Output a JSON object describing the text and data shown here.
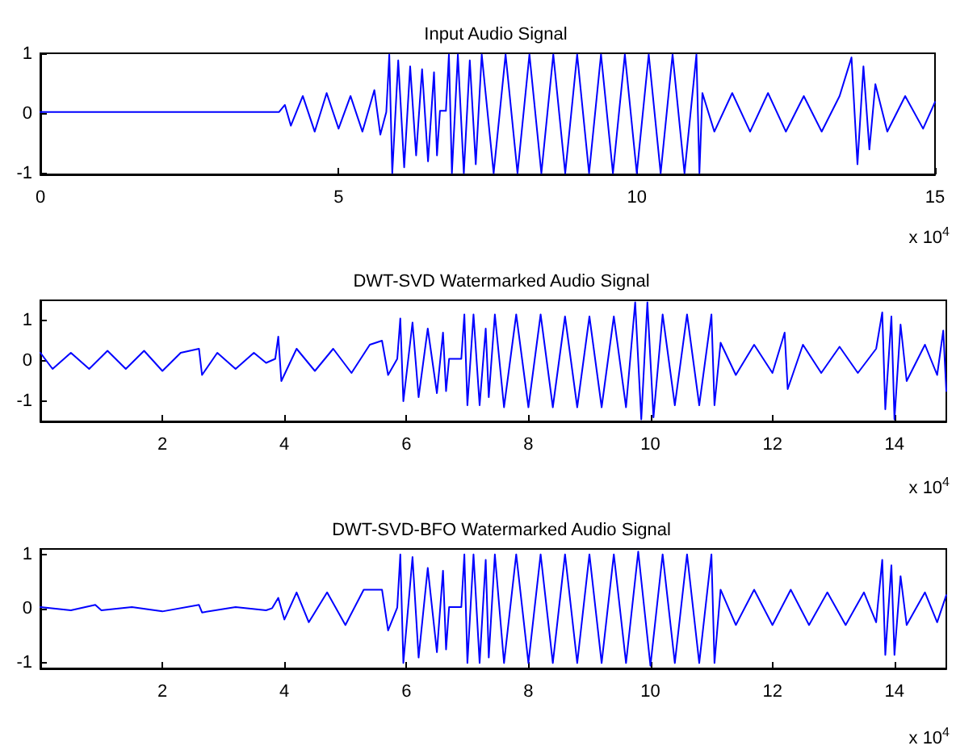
{
  "chart_data": [
    {
      "type": "line",
      "title": "Input Audio Signal",
      "annotations": [
        "x 10$^{4}$"
      ],
      "color": "#0000ff",
      "grid": false,
      "marker": "none",
      "line_style": "solid",
      "xlim": [
        0,
        15
      ],
      "xticks": [
        0,
        5,
        10,
        15
      ],
      "ylim": [
        -1.02,
        1.02
      ],
      "yticks": [
        -1,
        0,
        1
      ],
      "x": [
        0,
        1,
        2,
        3,
        4,
        4.1,
        4.2,
        4.4,
        4.6,
        4.8,
        5.0,
        5.2,
        5.4,
        5.6,
        5.7,
        5.8,
        5.85,
        5.9,
        6.0,
        6.1,
        6.2,
        6.3,
        6.4,
        6.5,
        6.6,
        6.65,
        6.7,
        6.8,
        6.85,
        6.9,
        7.0,
        7.1,
        7.2,
        7.3,
        7.4,
        7.6,
        7.8,
        8.0,
        8.2,
        8.4,
        8.6,
        8.8,
        9.0,
        9.2,
        9.4,
        9.6,
        9.8,
        10.0,
        10.2,
        10.4,
        10.6,
        10.8,
        11.0,
        11.05,
        11.1,
        11.3,
        11.6,
        11.9,
        12.2,
        12.5,
        12.8,
        13.1,
        13.4,
        13.6,
        13.7,
        13.8,
        13.9,
        14.0,
        14.2,
        14.5,
        14.8,
        15
      ],
      "values": [
        0.03,
        0.03,
        0.03,
        0.03,
        0.03,
        0.15,
        -0.2,
        0.3,
        -0.3,
        0.35,
        -0.25,
        0.3,
        -0.3,
        0.4,
        -0.35,
        0.03,
        1,
        -1,
        0.9,
        -0.9,
        0.8,
        -0.7,
        0.75,
        -0.8,
        0.7,
        -0.7,
        0.05,
        0.05,
        1,
        -1,
        1,
        -1,
        0.9,
        -0.85,
        1,
        -1,
        1,
        -1,
        1,
        -1,
        1,
        -1,
        1,
        -1,
        1,
        -1,
        1,
        -1,
        1,
        -1,
        1,
        -1,
        1,
        -1,
        0.35,
        -0.3,
        0.35,
        -0.3,
        0.35,
        -0.3,
        0.3,
        -0.3,
        0.3,
        0.95,
        -0.85,
        0.8,
        -0.6,
        0.5,
        -0.3,
        0.3,
        -0.25,
        0.2
      ]
    },
    {
      "type": "line",
      "title": "DWT-SVD Watermarked Audio Signal",
      "annotations": [
        "x 10$^{4}$"
      ],
      "color": "#0000ff",
      "grid": false,
      "marker": "none",
      "line_style": "solid",
      "xlim": [
        0,
        14.85
      ],
      "xticks": [
        2,
        4,
        6,
        8,
        10,
        12,
        14
      ],
      "ylim": [
        -1.5,
        1.5
      ],
      "yticks": [
        -1,
        0,
        1
      ],
      "x": [
        0,
        0.2,
        0.5,
        0.8,
        1.1,
        1.4,
        1.7,
        2.0,
        2.3,
        2.6,
        2.65,
        2.9,
        3.2,
        3.5,
        3.7,
        3.85,
        3.9,
        3.95,
        4.2,
        4.5,
        4.8,
        5.1,
        5.4,
        5.6,
        5.7,
        5.85,
        5.9,
        5.95,
        6.1,
        6.2,
        6.35,
        6.5,
        6.6,
        6.65,
        6.7,
        6.9,
        6.95,
        7.0,
        7.1,
        7.2,
        7.3,
        7.35,
        7.45,
        7.6,
        7.8,
        8.0,
        8.2,
        8.4,
        8.6,
        8.8,
        9.0,
        9.2,
        9.4,
        9.6,
        9.75,
        9.85,
        9.95,
        10.05,
        10.2,
        10.4,
        10.6,
        10.8,
        11.0,
        11.05,
        11.15,
        11.4,
        11.7,
        12.0,
        12.2,
        12.25,
        12.5,
        12.8,
        13.1,
        13.4,
        13.7,
        13.8,
        13.85,
        13.95,
        14.0,
        14.1,
        14.2,
        14.5,
        14.7,
        14.8,
        14.85
      ],
      "values": [
        0.2,
        -0.2,
        0.2,
        -0.2,
        0.25,
        -0.2,
        0.25,
        -0.25,
        0.2,
        0.3,
        -0.35,
        0.2,
        -0.2,
        0.2,
        -0.05,
        0.05,
        0.6,
        -0.5,
        0.3,
        -0.25,
        0.3,
        -0.3,
        0.4,
        0.5,
        -0.35,
        0.05,
        1.05,
        -1.0,
        0.95,
        -0.9,
        0.8,
        -0.8,
        0.7,
        -0.75,
        0.05,
        0.05,
        1.15,
        -1.1,
        1.15,
        -1.1,
        0.8,
        -0.9,
        1.15,
        -1.15,
        1.15,
        -1.15,
        1.15,
        -1.15,
        1.1,
        -1.15,
        1.1,
        -1.15,
        1.1,
        -1.15,
        1.45,
        -1.45,
        1.45,
        -1.4,
        1.15,
        -1.1,
        1.15,
        -1.1,
        1.15,
        -1.1,
        0.45,
        -0.35,
        0.4,
        -0.3,
        0.7,
        -0.7,
        0.4,
        -0.3,
        0.35,
        -0.3,
        0.3,
        1.2,
        -1.2,
        1.1,
        -1.45,
        0.9,
        -0.5,
        0.4,
        -0.35,
        0.75,
        -0.75
      ]
    },
    {
      "type": "line",
      "title": "DWT-SVD-BFO Watermarked Audio Signal",
      "annotations": [
        "x 10$^{4}$"
      ],
      "color": "#0000ff",
      "grid": false,
      "marker": "none",
      "line_style": "solid",
      "xlim": [
        0,
        14.85
      ],
      "xticks": [
        2,
        4,
        6,
        8,
        10,
        12,
        14
      ],
      "ylim": [
        -1.1,
        1.1
      ],
      "yticks": [
        -1,
        0,
        1
      ],
      "x": [
        0,
        0.5,
        0.9,
        1.0,
        1.5,
        2.0,
        2.6,
        2.65,
        3.2,
        3.7,
        3.8,
        3.9,
        4.0,
        4.2,
        4.4,
        4.7,
        5.0,
        5.3,
        5.6,
        5.7,
        5.85,
        5.9,
        5.95,
        6.1,
        6.2,
        6.35,
        6.5,
        6.6,
        6.65,
        6.7,
        6.9,
        6.95,
        7.0,
        7.1,
        7.2,
        7.3,
        7.35,
        7.45,
        7.6,
        7.8,
        8.0,
        8.2,
        8.4,
        8.6,
        8.8,
        9.0,
        9.2,
        9.4,
        9.6,
        9.8,
        10.0,
        10.2,
        10.4,
        10.6,
        10.8,
        11.0,
        11.05,
        11.15,
        11.4,
        11.7,
        12.0,
        12.3,
        12.6,
        12.9,
        13.2,
        13.5,
        13.7,
        13.8,
        13.85,
        13.95,
        14.0,
        14.1,
        14.2,
        14.5,
        14.7,
        14.85
      ],
      "values": [
        0.03,
        -0.03,
        0.07,
        -0.03,
        0.03,
        -0.05,
        0.07,
        -0.07,
        0.03,
        -0.03,
        0.01,
        0.2,
        -0.2,
        0.3,
        -0.25,
        0.3,
        -0.3,
        0.35,
        0.35,
        -0.4,
        0.02,
        1.0,
        -1.0,
        0.95,
        -0.9,
        0.75,
        -0.8,
        0.7,
        -0.75,
        0.03,
        0.03,
        1.0,
        -1.0,
        1.0,
        -1.0,
        0.9,
        -0.9,
        1.0,
        -1.0,
        1.0,
        -1.0,
        1.0,
        -1.0,
        1.0,
        -1.0,
        1.0,
        -1.0,
        1.0,
        -1.0,
        1.05,
        -1.05,
        1.0,
        -1.0,
        1.0,
        -1.0,
        1.0,
        -1.0,
        0.35,
        -0.3,
        0.35,
        -0.3,
        0.35,
        -0.3,
        0.3,
        -0.3,
        0.3,
        -0.25,
        0.9,
        -0.85,
        0.8,
        -0.85,
        0.6,
        -0.3,
        0.3,
        -0.25,
        0.25
      ]
    }
  ]
}
